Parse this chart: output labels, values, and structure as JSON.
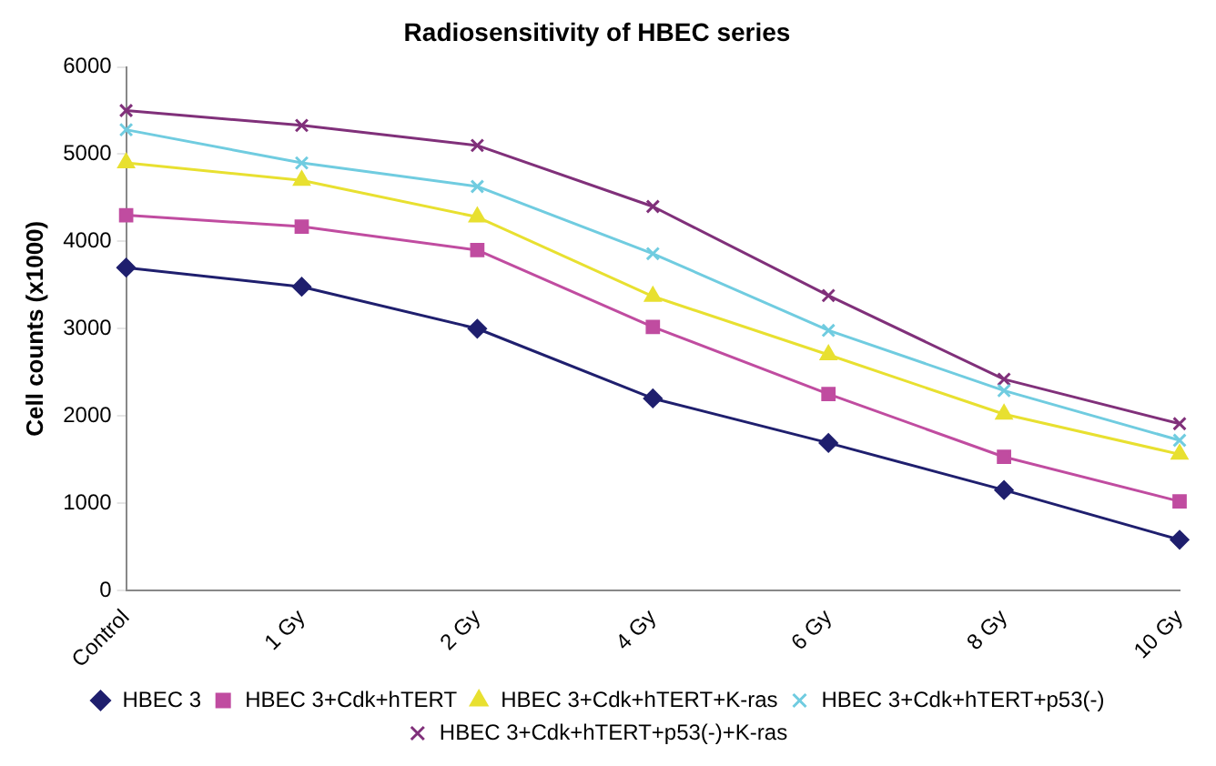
{
  "chart_data": {
    "type": "line",
    "title": "Radiosensitivity of HBEC series",
    "ylabel": "Cell counts (x1000)",
    "categories": [
      "Control",
      "1 Gy",
      "2 Gy",
      "4 Gy",
      "6 Gy",
      "8 Gy",
      "10 Gy"
    ],
    "ylim": [
      0,
      6000
    ],
    "yticks": [
      0,
      1000,
      2000,
      3000,
      4000,
      5000,
      6000
    ],
    "grid": false,
    "legend": "bottom",
    "series": [
      {
        "name": "HBEC 3",
        "color": "#1f1f6e",
        "marker": "diamond",
        "values": [
          3700,
          3480,
          3000,
          2200,
          1690,
          1150,
          580
        ]
      },
      {
        "name": "HBEC 3+Cdk+hTERT",
        "color": "#c04ca0",
        "marker": "square",
        "values": [
          4300,
          4170,
          3900,
          3020,
          2250,
          1530,
          1020
        ]
      },
      {
        "name": "HBEC 3+Cdk+hTERT+K-ras",
        "color": "#e8e030",
        "marker": "triangle",
        "values": [
          4900,
          4700,
          4280,
          3370,
          2700,
          2020,
          1560
        ]
      },
      {
        "name": "HBEC 3+Cdk+hTERT+p53(-)",
        "color": "#70cce0",
        "marker": "cross",
        "values": [
          5280,
          4900,
          4630,
          3860,
          2980,
          2290,
          1720
        ]
      },
      {
        "name": "HBEC 3+Cdk+hTERT+p53(-)+K-ras",
        "color": "#80307a",
        "marker": "cross",
        "values": [
          5500,
          5330,
          5100,
          4400,
          3380,
          2420,
          1910
        ]
      }
    ]
  }
}
